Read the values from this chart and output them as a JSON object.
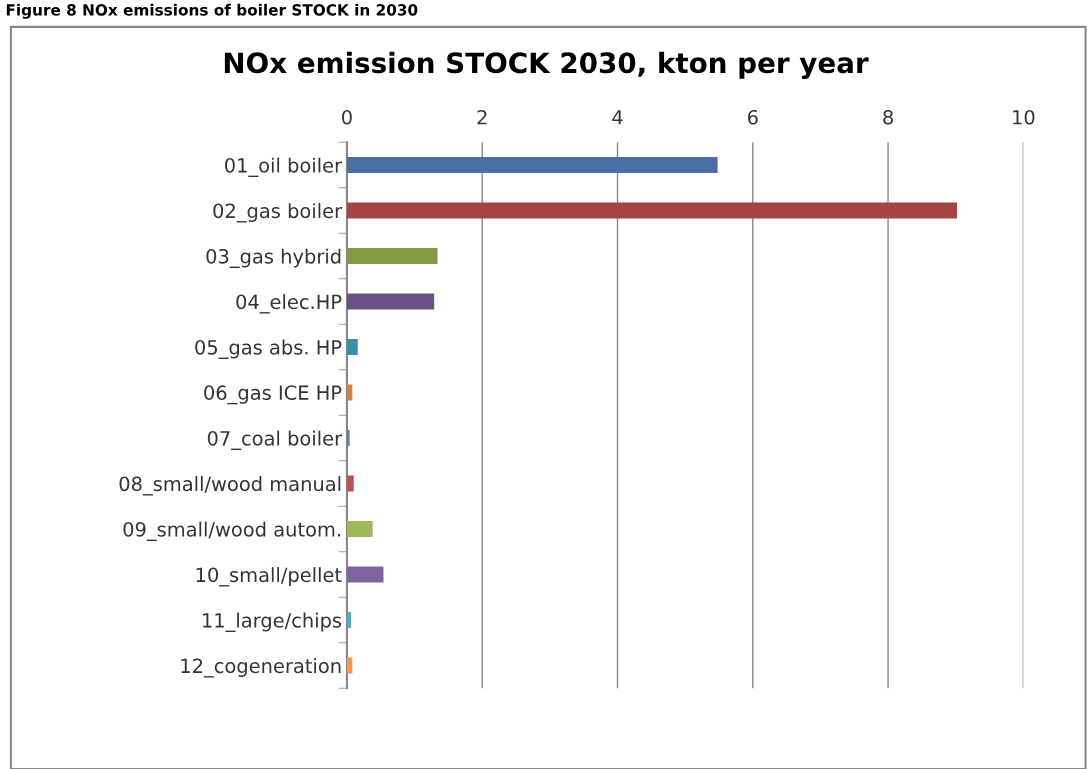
{
  "chart_data": {
    "type": "bar",
    "orientation": "horizontal",
    "title": "NOx emission STOCK 2030, kton per year",
    "annotations": [
      "Figure 8 NOx emissions of boiler STOCK in 2030"
    ],
    "categories": [
      "01_oil boiler",
      "02_gas boiler",
      "03_gas hybrid",
      "04_elec.HP",
      "05_gas abs. HP",
      "06_gas ICE HP",
      "07_coal boiler",
      "08_small/wood manual",
      "09_small/wood autom.",
      "10_small/pellet",
      "11_large/chips",
      "12_cogeneration"
    ],
    "values": [
      5.48,
      9.02,
      1.34,
      1.29,
      0.16,
      0.08,
      0.04,
      0.1,
      0.38,
      0.54,
      0.06,
      0.08
    ],
    "colors": [
      "#4a6fa5",
      "#a54442",
      "#7e9a46",
      "#6a5087",
      "#3a8fa8",
      "#d4813b",
      "#4f81bd",
      "#c0504d",
      "#9bbb59",
      "#8064a2",
      "#4bacc6",
      "#f79646"
    ],
    "xlim": [
      0,
      10
    ],
    "xticks": [
      0,
      2,
      4,
      6,
      8,
      10
    ],
    "grid": "x"
  }
}
